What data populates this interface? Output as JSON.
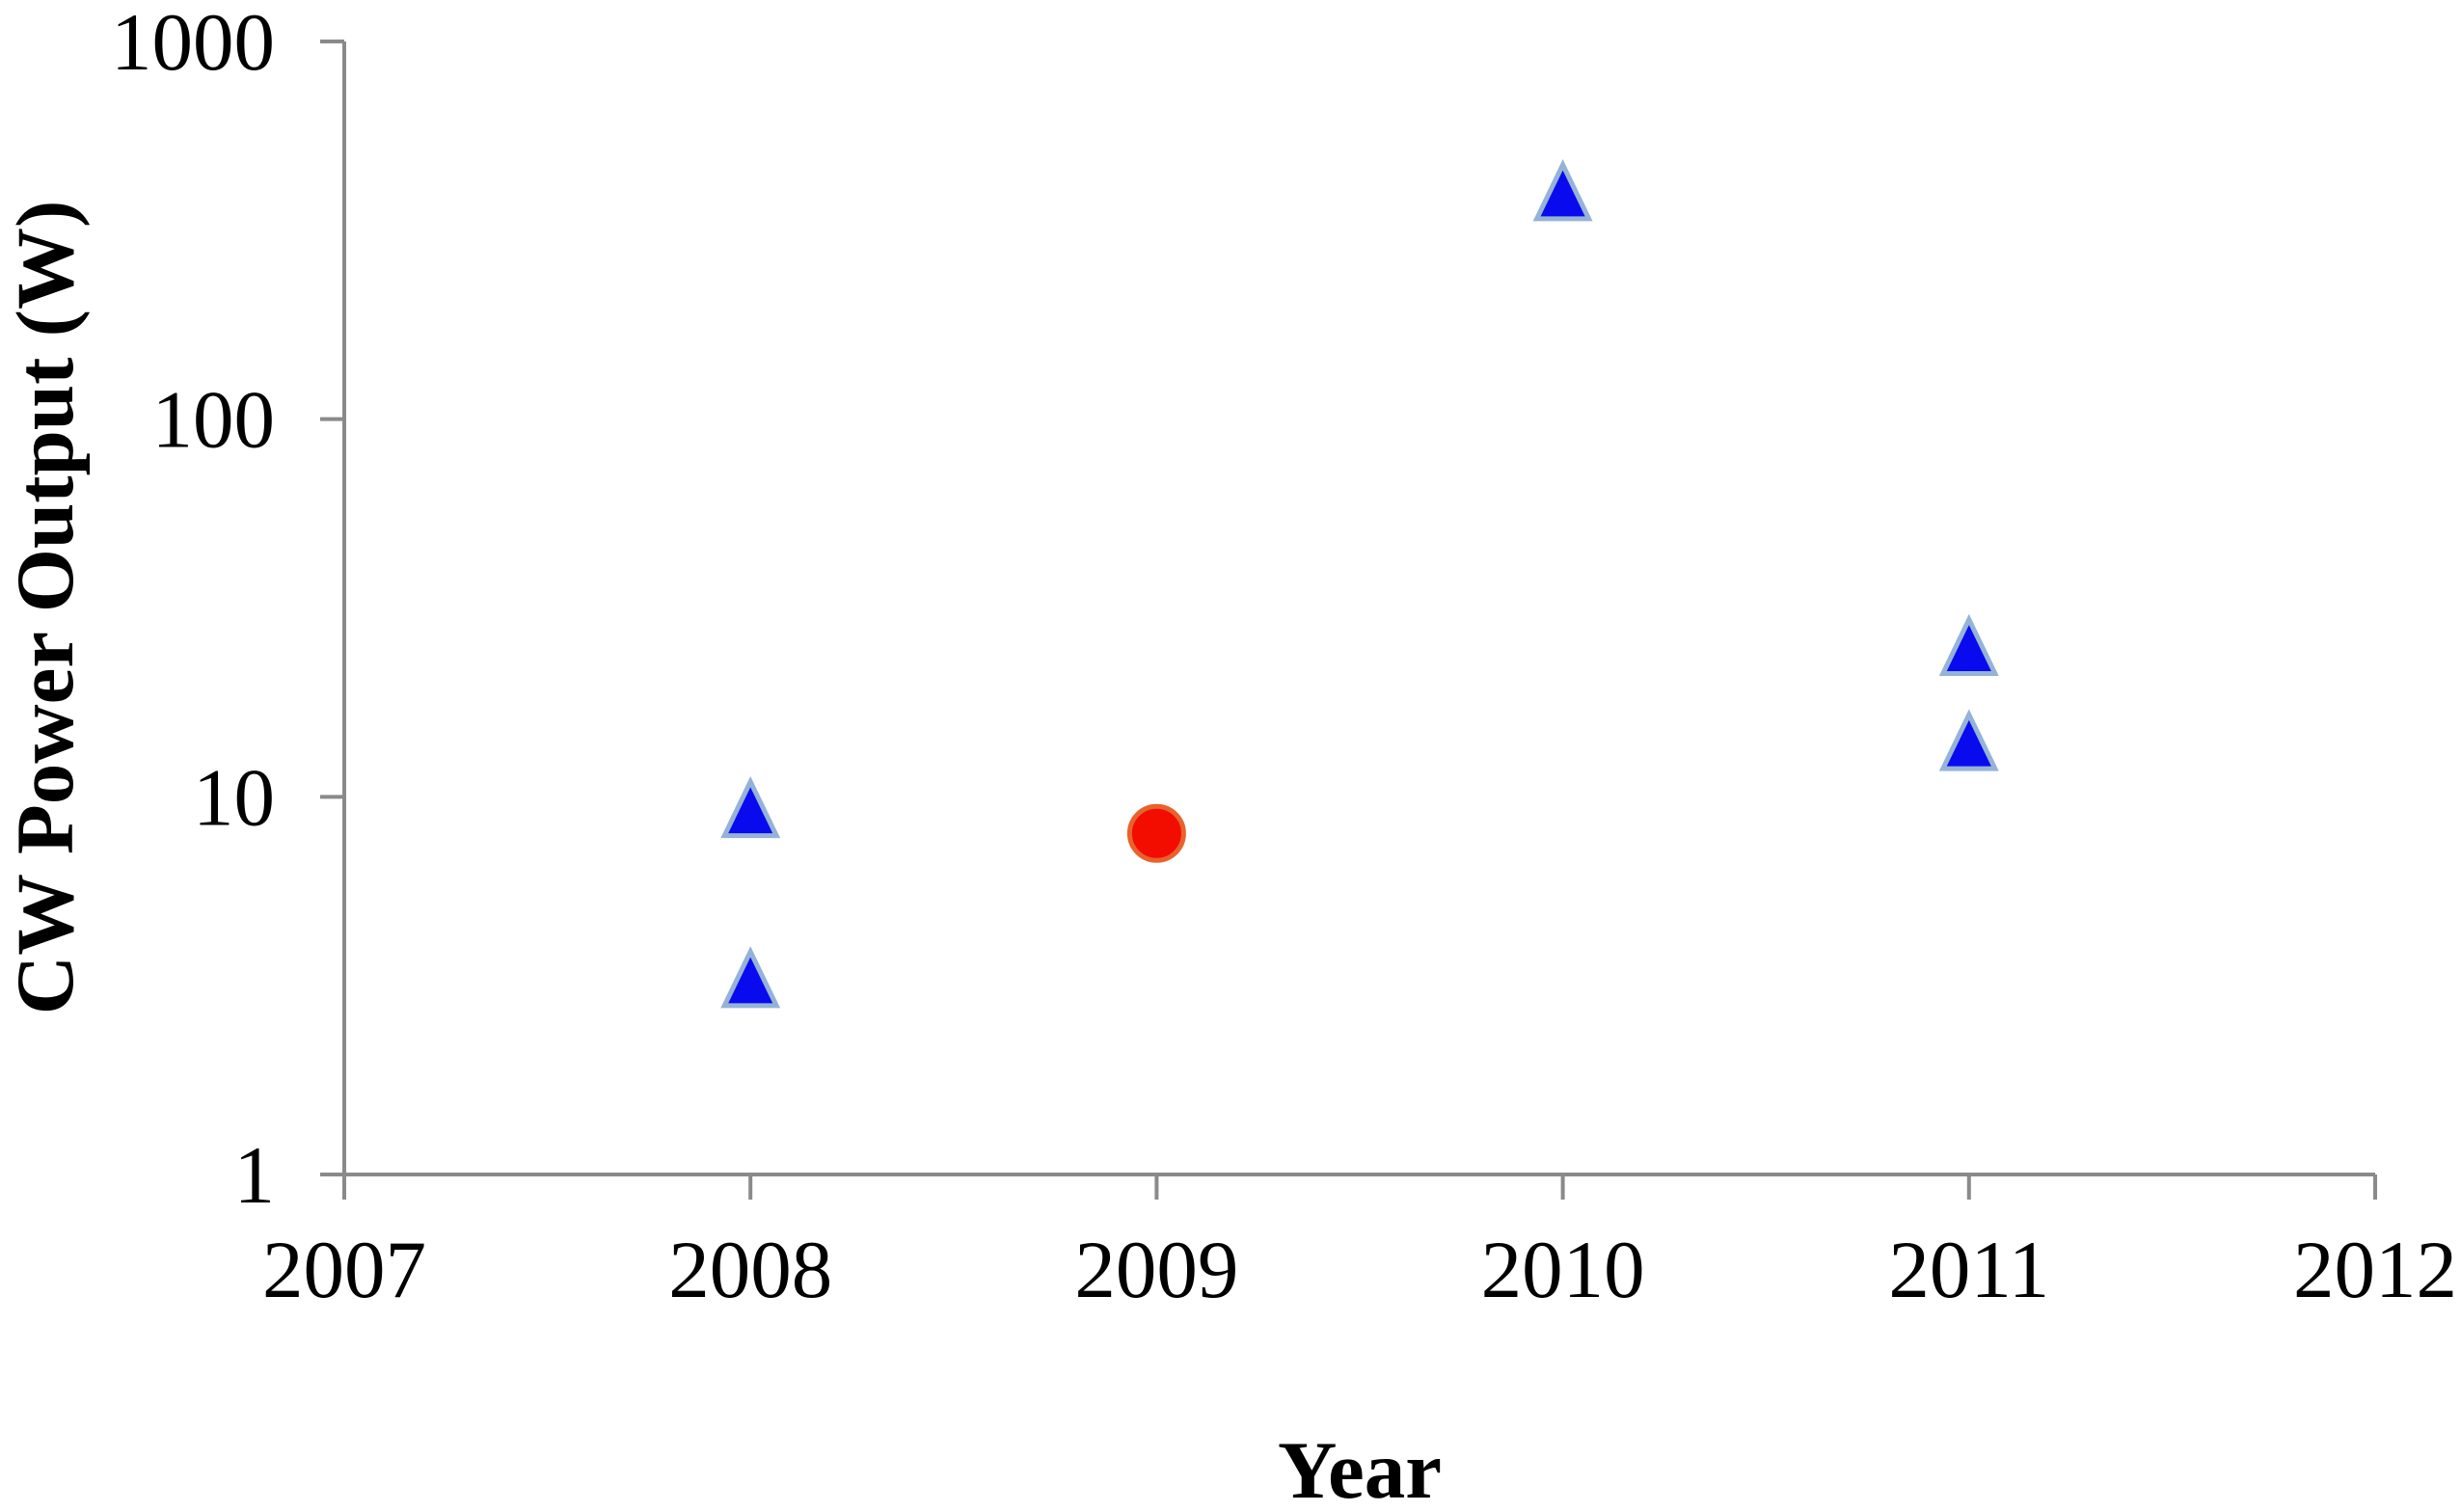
{
  "figure": {
    "background_color": "#ffffff",
    "axis_line_color": "#8a8a8a",
    "text_color": "#000000"
  },
  "chart_data": {
    "type": "scatter",
    "title": "",
    "xlabel": "Year",
    "ylabel": "CW Power Output (W)",
    "x_axis": {
      "scale": "linear",
      "min": 2007,
      "max": 2012,
      "ticks": [
        2007,
        2008,
        2009,
        2010,
        2011,
        2012
      ],
      "tick_labels": [
        "2007",
        "2008",
        "2009",
        "2010",
        "2011",
        "2012"
      ]
    },
    "y_axis": {
      "scale": "log",
      "min": 1,
      "max": 1000,
      "ticks": [
        1,
        10,
        100,
        1000
      ],
      "tick_labels": [
        "1",
        "10",
        "100",
        "1000"
      ]
    },
    "grid": false,
    "legend": false,
    "series": [
      {
        "name": "blue-triangle-series",
        "marker": "triangle",
        "fill": "#0a0aee",
        "stroke": "#95b3d7",
        "points": [
          {
            "x": 2008,
            "y": 9.3
          },
          {
            "x": 2008,
            "y": 3.3
          },
          {
            "x": 2010,
            "y": 400
          },
          {
            "x": 2011,
            "y": 25
          },
          {
            "x": 2011,
            "y": 14
          }
        ]
      },
      {
        "name": "red-circle-series",
        "marker": "circle",
        "fill": "#f20d00",
        "stroke": "#e8622c",
        "points": [
          {
            "x": 2009,
            "y": 8
          }
        ]
      }
    ]
  }
}
